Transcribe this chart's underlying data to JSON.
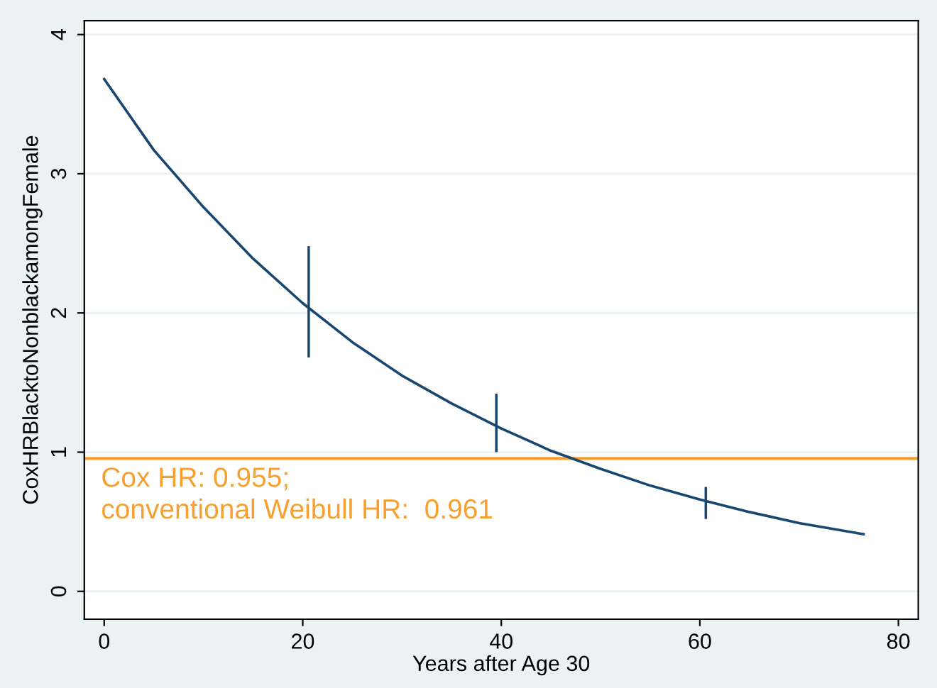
{
  "chart_data": {
    "type": "line",
    "xlabel": "Years after Age 30",
    "ylabel": "CoxHRBlacktoNonblackamongFemale",
    "xlim": [
      -2,
      82
    ],
    "ylim": [
      -0.2,
      4.1
    ],
    "xticks": [
      0,
      20,
      40,
      60,
      80
    ],
    "yticks": [
      0,
      1,
      2,
      3,
      4
    ],
    "grid": "y",
    "series": [
      {
        "color": "#1a476f",
        "x": [
          0,
          5,
          10,
          15,
          20,
          25,
          30,
          35,
          40,
          45,
          50,
          55,
          60,
          65,
          70,
          76.5
        ],
        "values": [
          3.68,
          3.17,
          2.76,
          2.39,
          2.07,
          1.79,
          1.55,
          1.35,
          1.17,
          1.01,
          0.88,
          0.76,
          0.66,
          0.57,
          0.49,
          0.41
        ]
      },
      {
        "type": "bar",
        "color": "#1a476f",
        "x": [
          20.6,
          39.5,
          60.6
        ],
        "base": [
          1.68,
          1.0,
          0.52
        ],
        "values": [
          0.8,
          0.42,
          0.23
        ]
      }
    ],
    "ref_lines": [
      {
        "axis": "y",
        "value": 0.955,
        "color": "#f7a030",
        "label": "Cox HR: 0.955;\nconventional Weibull HR:  0.961"
      }
    ]
  }
}
